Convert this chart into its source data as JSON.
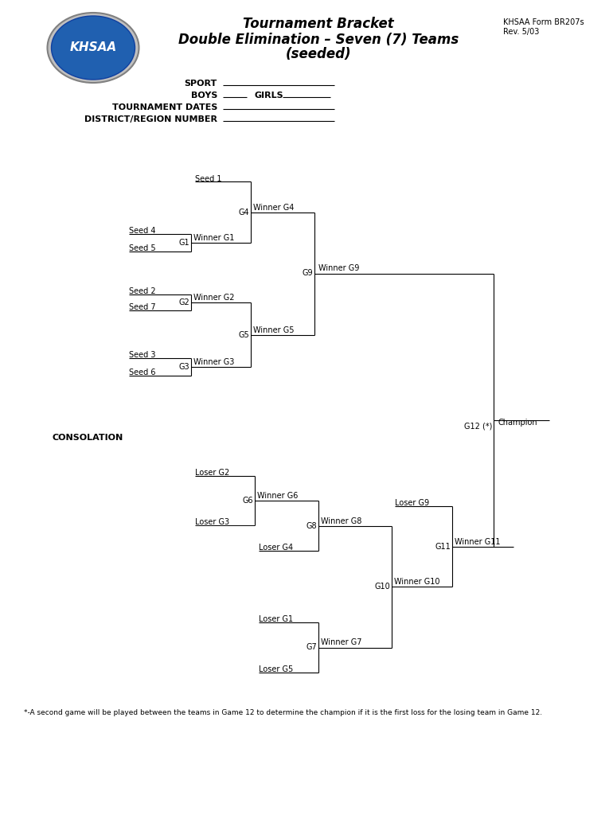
{
  "title_line1": "Tournament Bracket",
  "title_line2": "Double Elimination – Seven (7) Teams",
  "title_line3": "(seeded)",
  "form_ref": "KHSAA Form BR207s",
  "rev": "Rev. 5/03",
  "footnote": "*-A second game will be played between the teams in Game 12 to determine the champion if it is the first loss for the losing team in Game 12.",
  "bg_color": "#ffffff",
  "line_color": "#000000",
  "text_color": "#000000"
}
